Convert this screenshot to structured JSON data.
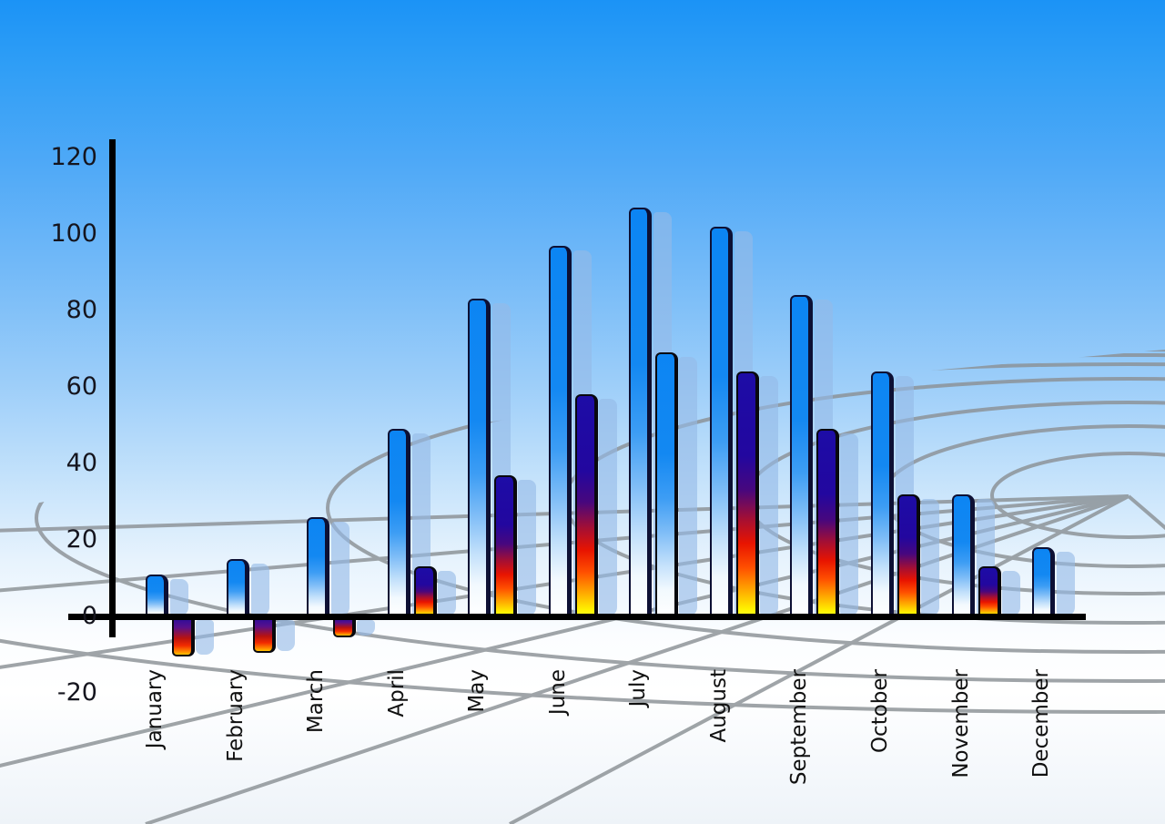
{
  "chart_data": {
    "type": "bar",
    "title": "",
    "xlabel": "",
    "ylabel": "",
    "categories": [
      "January",
      "February",
      "March",
      "April",
      "May",
      "June",
      "July",
      "August",
      "September",
      "October",
      "November",
      "December"
    ],
    "series": [
      {
        "name": "series-1-blue",
        "values": [
          11,
          15,
          26,
          49,
          83,
          97,
          107,
          102,
          84,
          64,
          32,
          18
        ]
      },
      {
        "name": "series-2-fire",
        "values": [
          -10,
          -9,
          -5,
          13,
          37,
          58,
          69,
          64,
          49,
          32,
          13,
          null
        ]
      }
    ],
    "y_axis": {
      "min": -20,
      "max": 120,
      "tick_step": 20,
      "ticks": [
        120,
        100,
        80,
        60,
        40,
        20,
        0,
        -20
      ]
    },
    "legend_position": "none",
    "grid": "perspective polar floor grid, gray lines",
    "bar_style_notes": "each bar has a translucent light-blue echo bar offset to the right; series-2 July bar uses the blue gradient with dark outline; December has no series-2 bar; Jan-Mar series-2 bars are negative (below zero line)"
  },
  "colors": {
    "sky_top": "#1b93f6",
    "sky_mid": "#9bcdf9",
    "sky_bottom": "#eef3f8",
    "grid_line": "#8b9195",
    "axis": "#000000",
    "tick_label": "#15151e",
    "month_label": "#111111",
    "bar_blue_top": "#0c85f3",
    "bar_blue_bottom": "#ffffff",
    "fire_navy": "#1d0ca6",
    "fire_red": "#e81400",
    "fire_orange": "#ffa600",
    "fire_yellow": "#fff200",
    "echo_fill": "rgba(148,185,231,0.62)",
    "bar_outline": "#0d1034"
  }
}
